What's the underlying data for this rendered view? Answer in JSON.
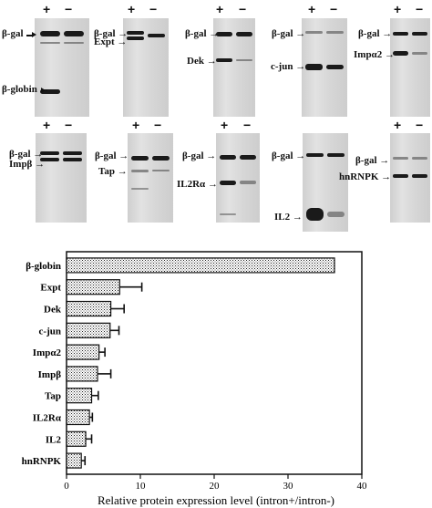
{
  "blots": {
    "plus": "+",
    "minus": "−",
    "arrow": "→",
    "panels": [
      {
        "id": "bglobin",
        "labels": [
          "β-gal",
          "β-globin"
        ]
      },
      {
        "id": "expt",
        "labels": [
          "β-gal",
          "Expt"
        ]
      },
      {
        "id": "dek",
        "labels": [
          "β-gal",
          "Dek"
        ]
      },
      {
        "id": "cjun",
        "labels": [
          "β-gal",
          "c-jun"
        ]
      },
      {
        "id": "impa2",
        "labels": [
          "β-gal",
          "Impα2"
        ]
      },
      {
        "id": "impb",
        "labels": [
          "β-gal",
          "Impβ"
        ]
      },
      {
        "id": "tap",
        "labels": [
          "β-gal",
          "Tap"
        ]
      },
      {
        "id": "il2ra",
        "labels": [
          "β-gal",
          "IL2Rα"
        ]
      },
      {
        "id": "il2",
        "labels": [
          "β-gal",
          "IL2"
        ]
      },
      {
        "id": "hnrnpk",
        "labels": [
          "β-gal",
          "hnRNPK"
        ]
      }
    ]
  },
  "chart_data": {
    "type": "bar",
    "orientation": "horizontal",
    "categories": [
      "β-globin",
      "Expt",
      "Dek",
      "c-jun",
      "Impα2",
      "Impβ",
      "Tap",
      "IL2Rα",
      "IL2",
      "hnRNPK"
    ],
    "values": [
      36.3,
      7.2,
      6.0,
      5.9,
      4.4,
      4.2,
      3.4,
      3.1,
      2.6,
      2.0
    ],
    "errors": [
      0,
      3.0,
      1.8,
      1.2,
      0.8,
      1.8,
      0.9,
      0.4,
      0.8,
      0.5
    ],
    "xlim": [
      0,
      40
    ],
    "xticks": [
      "0",
      "10",
      "20",
      "30",
      "40"
    ],
    "xlabel": "Relative protein expression level (intron+/intron-)",
    "ylabel": "",
    "title": "",
    "grid": false,
    "bar_pattern": "stippled"
  }
}
